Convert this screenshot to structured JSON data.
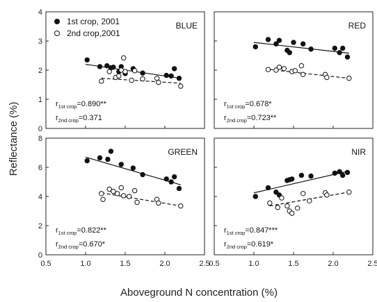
{
  "figure": {
    "xlabel": "Aboveground N concentration (%)",
    "ylabel": "Reflectance (%)"
  },
  "legend": {
    "first": "1st crop, 2001",
    "second": "2nd crop,2001"
  },
  "colors": {
    "ink": "#111111",
    "axis": "#222222"
  },
  "chart_data": [
    {
      "type": "scatter",
      "title": "BLUE",
      "xlim": [
        0.5,
        2.5
      ],
      "ylim": [
        0,
        4
      ],
      "xticks": [
        0.5,
        1.0,
        1.5,
        2.0,
        2.5
      ],
      "yticks": [
        0,
        1,
        2,
        3,
        4
      ],
      "series": [
        {
          "name": "1st crop, 2001",
          "marker": "filled",
          "points": [
            [
              1.02,
              2.35
            ],
            [
              1.18,
              2.12
            ],
            [
              1.27,
              2.15
            ],
            [
              1.32,
              2.08
            ],
            [
              1.35,
              2.1
            ],
            [
              1.42,
              1.95
            ],
            [
              1.45,
              2.12
            ],
            [
              1.5,
              1.88
            ],
            [
              1.6,
              2.05
            ],
            [
              1.72,
              1.9
            ],
            [
              2.02,
              1.82
            ],
            [
              2.08,
              1.8
            ],
            [
              2.12,
              2.05
            ],
            [
              2.18,
              1.72
            ]
          ],
          "trend": [
            [
              1.0,
              2.2
            ],
            [
              2.2,
              1.72
            ]
          ]
        },
        {
          "name": "2nd crop,2001",
          "marker": "open",
          "points": [
            [
              1.2,
              1.62
            ],
            [
              1.3,
              1.95
            ],
            [
              1.38,
              1.75
            ],
            [
              1.42,
              1.8
            ],
            [
              1.45,
              2.0
            ],
            [
              1.48,
              2.42
            ],
            [
              1.5,
              1.95
            ],
            [
              1.58,
              1.65
            ],
            [
              1.62,
              1.98
            ],
            [
              1.72,
              1.7
            ],
            [
              1.9,
              1.72
            ],
            [
              1.92,
              1.58
            ],
            [
              2.2,
              1.45
            ]
          ],
          "trend": [
            [
              1.2,
              1.72
            ],
            [
              2.2,
              1.55
            ]
          ]
        }
      ],
      "stats": [
        {
          "main": "r",
          "sub": "1st crop",
          "value": "=0.890**"
        },
        {
          "main": "r",
          "sub": "2nd crop",
          "value": "=0.371"
        }
      ]
    },
    {
      "type": "scatter",
      "title": "RED",
      "xlim": [
        0.5,
        2.5
      ],
      "ylim": [
        0,
        4
      ],
      "xticks": [
        0.5,
        1.0,
        1.5,
        2.0,
        2.5
      ],
      "yticks": [
        0,
        1,
        2,
        3,
        4
      ],
      "series": [
        {
          "name": "1st crop, 2001",
          "marker": "filled",
          "points": [
            [
              1.02,
              2.8
            ],
            [
              1.18,
              3.05
            ],
            [
              1.28,
              2.9
            ],
            [
              1.32,
              3.02
            ],
            [
              1.42,
              2.68
            ],
            [
              1.45,
              2.6
            ],
            [
              1.5,
              2.95
            ],
            [
              1.62,
              2.9
            ],
            [
              1.72,
              2.72
            ],
            [
              2.02,
              2.75
            ],
            [
              2.08,
              2.6
            ],
            [
              2.12,
              2.75
            ],
            [
              2.18,
              2.45
            ]
          ],
          "trend": [
            [
              1.0,
              2.95
            ],
            [
              2.2,
              2.58
            ]
          ]
        },
        {
          "name": "2nd crop,2001",
          "marker": "open",
          "points": [
            [
              1.18,
              2.02
            ],
            [
              1.28,
              2.0
            ],
            [
              1.32,
              2.1
            ],
            [
              1.38,
              2.05
            ],
            [
              1.48,
              1.95
            ],
            [
              1.52,
              1.98
            ],
            [
              1.6,
              2.15
            ],
            [
              1.62,
              1.85
            ],
            [
              1.9,
              1.85
            ],
            [
              1.92,
              1.75
            ],
            [
              2.2,
              1.72
            ]
          ],
          "trend": [
            [
              1.2,
              2.02
            ],
            [
              2.2,
              1.72
            ]
          ]
        }
      ],
      "stats": [
        {
          "main": "r",
          "sub": "1st crop",
          "value": "=0.678*"
        },
        {
          "main": "r",
          "sub": "2nd crop",
          "value": "=0.723**"
        }
      ]
    },
    {
      "type": "scatter",
      "title": "GREEN",
      "xlim": [
        0.5,
        2.5
      ],
      "ylim": [
        0,
        8
      ],
      "xticks": [
        0.5,
        1.0,
        1.5,
        2.0,
        2.5
      ],
      "yticks": [
        0,
        2,
        4,
        6,
        8
      ],
      "series": [
        {
          "name": "1st crop, 2001",
          "marker": "filled",
          "points": [
            [
              1.02,
              6.45
            ],
            [
              1.18,
              6.65
            ],
            [
              1.28,
              6.55
            ],
            [
              1.32,
              7.1
            ],
            [
              1.45,
              6.2
            ],
            [
              1.6,
              5.95
            ],
            [
              1.72,
              5.5
            ],
            [
              2.02,
              5.2
            ],
            [
              2.08,
              5.0
            ],
            [
              2.12,
              5.35
            ],
            [
              2.18,
              4.55
            ]
          ],
          "trend": [
            [
              1.0,
              6.7
            ],
            [
              2.2,
              4.8
            ]
          ]
        },
        {
          "name": "2nd crop,2001",
          "marker": "open",
          "points": [
            [
              1.2,
              4.2
            ],
            [
              1.22,
              3.8
            ],
            [
              1.3,
              4.5
            ],
            [
              1.35,
              4.35
            ],
            [
              1.4,
              4.2
            ],
            [
              1.45,
              4.6
            ],
            [
              1.48,
              4.05
            ],
            [
              1.55,
              4.0
            ],
            [
              1.62,
              4.4
            ],
            [
              1.65,
              3.6
            ],
            [
              1.9,
              3.8
            ],
            [
              1.92,
              3.55
            ],
            [
              2.2,
              3.35
            ]
          ],
          "trend": [
            [
              1.2,
              4.25
            ],
            [
              2.2,
              3.35
            ]
          ]
        }
      ],
      "stats": [
        {
          "main": "r",
          "sub": "1st crop",
          "value": "=0.822**"
        },
        {
          "main": "r",
          "sub": "2nd crop",
          "value": "=0.670*"
        }
      ]
    },
    {
      "type": "scatter",
      "title": "NIR",
      "xlim": [
        0.5,
        2.5
      ],
      "ylim": [
        0,
        8
      ],
      "xticks": [
        0.5,
        1.0,
        1.5,
        2.0,
        2.5
      ],
      "yticks": [
        0,
        2,
        4,
        6,
        8
      ],
      "series": [
        {
          "name": "1st crop, 2001",
          "marker": "filled",
          "points": [
            [
              1.02,
              4.0
            ],
            [
              1.18,
              4.6
            ],
            [
              1.28,
              4.3
            ],
            [
              1.32,
              4.1
            ],
            [
              1.42,
              5.1
            ],
            [
              1.45,
              5.15
            ],
            [
              1.48,
              5.2
            ],
            [
              1.6,
              5.45
            ],
            [
              1.72,
              5.4
            ],
            [
              2.02,
              5.6
            ],
            [
              2.08,
              5.7
            ],
            [
              2.12,
              5.45
            ],
            [
              2.18,
              5.65
            ]
          ],
          "trend": [
            [
              1.0,
              4.25
            ],
            [
              2.2,
              5.75
            ]
          ]
        },
        {
          "name": "2nd crop,2001",
          "marker": "open",
          "points": [
            [
              1.2,
              3.55
            ],
            [
              1.3,
              3.25
            ],
            [
              1.35,
              3.9
            ],
            [
              1.42,
              3.35
            ],
            [
              1.45,
              3.0
            ],
            [
              1.48,
              2.85
            ],
            [
              1.55,
              3.2
            ],
            [
              1.62,
              4.2
            ],
            [
              1.7,
              3.7
            ],
            [
              1.9,
              4.25
            ],
            [
              1.92,
              4.1
            ],
            [
              2.2,
              4.3
            ]
          ],
          "trend": [
            [
              1.2,
              3.35
            ],
            [
              2.2,
              4.3
            ]
          ]
        }
      ],
      "stats": [
        {
          "main": "r",
          "sub": "1st crop",
          "value": "=0.847***"
        },
        {
          "main": "r",
          "sub": "2nd crop",
          "value": "=0.619*"
        }
      ]
    }
  ]
}
